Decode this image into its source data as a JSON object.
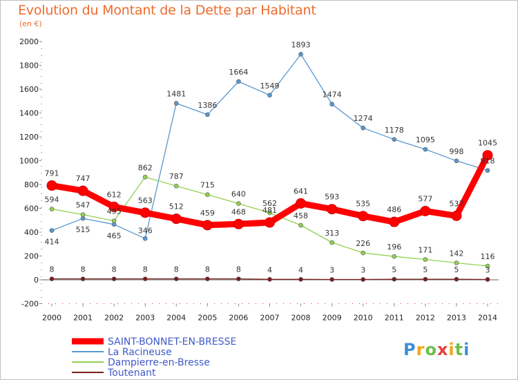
{
  "header": {
    "title": "Evolution du Montant de la Dette par Habitant",
    "subtitle": "(en €)"
  },
  "logo": {
    "text": "Proxiti"
  },
  "chart_data": {
    "type": "line",
    "x": [
      "2000",
      "2001",
      "2002",
      "2003",
      "2004",
      "2005",
      "2006",
      "2007",
      "2008",
      "2009",
      "2010",
      "2011",
      "2012",
      "2013",
      "2014"
    ],
    "ylim": [
      -200,
      2000
    ],
    "yticks": [
      -200,
      0,
      200,
      400,
      600,
      800,
      1000,
      1200,
      1400,
      1600,
      1800,
      2000
    ],
    "grid": false,
    "legend_position": "bottom-left",
    "series": [
      {
        "name": "La Racineuse",
        "color": "#5a97cf",
        "values": [
          414,
          515,
          465,
          346,
          1481,
          1386,
          1664,
          1549,
          1893,
          1474,
          1274,
          1178,
          1095,
          998,
          918
        ]
      },
      {
        "name": "Dampierre-en-Bresse",
        "color": "#8fd14f",
        "values": [
          594,
          547,
          495,
          862,
          787,
          715,
          640,
          562,
          458,
          313,
          226,
          196,
          171,
          142,
          116
        ]
      },
      {
        "name": "Toutenant",
        "color": "#7a1c1c",
        "values": [
          8,
          8,
          8,
          8,
          8,
          8,
          8,
          4,
          4,
          3,
          3,
          5,
          5,
          5,
          3
        ]
      },
      {
        "name": "SAINT-BONNET-EN-BRESSE",
        "color": "#ff0000",
        "values": [
          791,
          747,
          612,
          563,
          512,
          459,
          468,
          481,
          641,
          593,
          535,
          486,
          577,
          537,
          1045
        ]
      }
    ],
    "legend_order": [
      "SAINT-BONNET-EN-BRESSE",
      "La Racineuse",
      "Dampierre-en-Bresse",
      "Toutenant"
    ]
  }
}
